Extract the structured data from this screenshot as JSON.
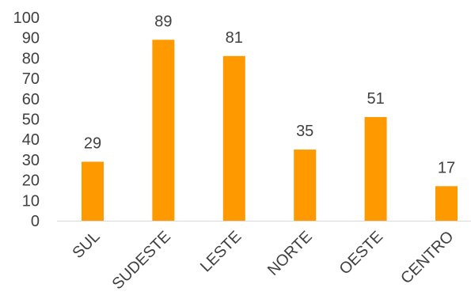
{
  "chart_data": {
    "type": "bar",
    "categories": [
      "SUL",
      "SUDESTE",
      "LESTE",
      "NORTE",
      "OESTE",
      "CENTRO"
    ],
    "values": [
      29,
      89,
      81,
      35,
      51,
      17
    ],
    "ylim": [
      0,
      100
    ],
    "yticks": [
      0,
      10,
      20,
      30,
      40,
      50,
      60,
      70,
      80,
      90,
      100
    ],
    "title": "",
    "xlabel": "",
    "ylabel": "",
    "grid": false,
    "legend": "none",
    "bar_color": "#FF9900",
    "axis_color": "#D9D9D9"
  }
}
